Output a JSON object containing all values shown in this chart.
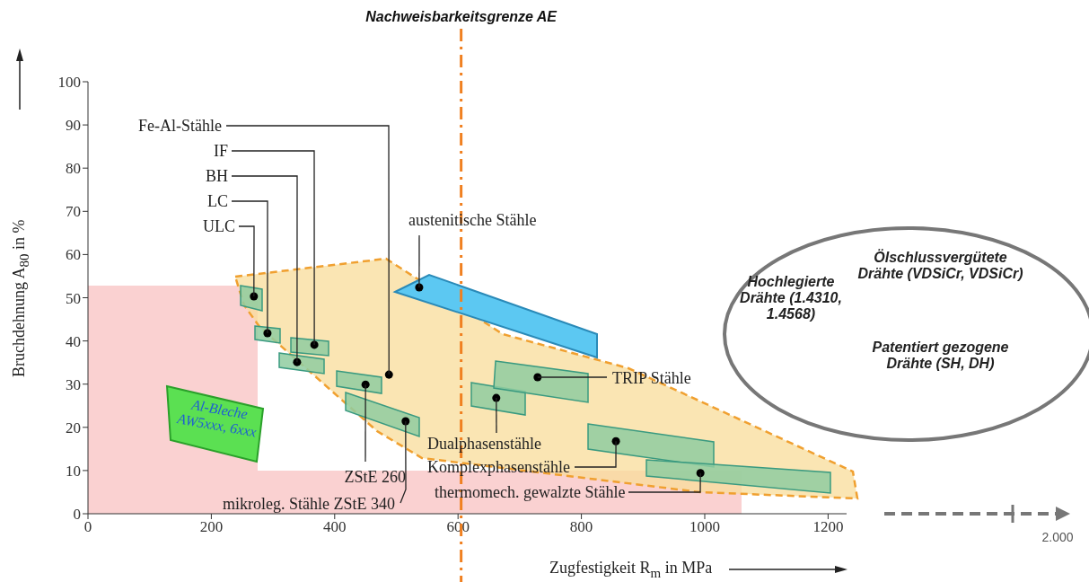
{
  "chart_data": {
    "type": "scatter",
    "xlabel": "Zugfestigkeit R$_{m}$ in MPa",
    "ylabel": "Bruchdehnung A$_{80}$ in %",
    "xlim": [
      0,
      1230
    ],
    "xticks": [
      0,
      200,
      400,
      600,
      800,
      1000,
      1200
    ],
    "ylim": [
      0,
      100
    ],
    "yticks": [
      0,
      10,
      20,
      30,
      40,
      50,
      60,
      70,
      80,
      90,
      100
    ],
    "marker": "circle",
    "series": [
      {
        "color": "#000000",
        "x": [
          269,
          291,
          339,
          367,
          488,
          537,
          450,
          515,
          662,
          729,
          856,
          993
        ],
        "values": [
          50.3,
          41.8,
          35.1,
          39.1,
          32.2,
          52.4,
          29.9,
          21.4,
          26.8,
          31.6,
          16.8,
          9.4
        ]
      }
    ],
    "ref_lines": [
      {
        "axis": "x",
        "value": 605,
        "label": "Nachweisbarkeitsgrenze AE",
        "color": "#f08020",
        "line_style": "dashed"
      }
    ],
    "annotations": [
      {
        "text": "ULC",
        "x": 269,
        "y": 50.3
      },
      {
        "text": "LC",
        "x": 291,
        "y": 41.8
      },
      {
        "text": "BH",
        "x": 339,
        "y": 35.1
      },
      {
        "text": "IF",
        "x": 367,
        "y": 39.1
      },
      {
        "text": "Fe-Al-Stähle",
        "x": 488,
        "y": 32.2
      },
      {
        "text": "austenitische Stähle",
        "x": 537,
        "y": 52.4
      },
      {
        "text": "ZStE 260",
        "x": 450,
        "y": 29.9
      },
      {
        "text": "mikroleg. Stähle ZStE 340",
        "x": 515,
        "y": 21.4
      },
      {
        "text": "Dualphasenstähle",
        "x": 662,
        "y": 26.8
      },
      {
        "text": "TRIP Stähle",
        "x": 729,
        "y": 31.6
      },
      {
        "text": "Komplexphasenstähle",
        "x": 856,
        "y": 16.8
      },
      {
        "text": "thermomech. gewalzte Stähle",
        "x": 993,
        "y": 9.4
      },
      "Al-Bleche AW5xxx, 6xxx",
      "Hochlegierte Drähte (1.4310, 1.4568)",
      "Ölschlussvergütete Drähte (VDSiCr, VDSiCr)",
      "Patentiert gezogene Drähte (SH, DH)",
      "2.000"
    ]
  }
}
